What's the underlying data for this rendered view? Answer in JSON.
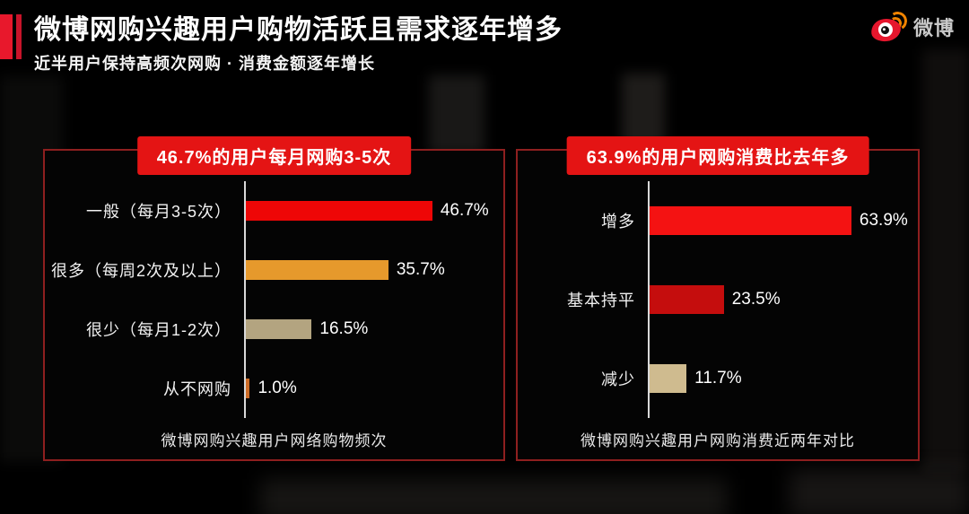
{
  "header": {
    "title": "微博网购兴趣用户购物活跃且需求逐年增多",
    "subtitle": "近半用户保持高频次网购 · 消费金额逐年增长",
    "logo_text": "微博",
    "accent_color": "#e8182c",
    "accent_stripe_color": "#c8142a"
  },
  "chart_data": [
    {
      "type": "bar",
      "orientation": "horizontal",
      "title": "46.7%的用户每月网购3-5次",
      "caption": "微博网购兴趣用户网络购物频次",
      "categories": [
        "一般（每月3-5次）",
        "很多（每周2次及以上）",
        "很少（每月1-2次）",
        "从不网购"
      ],
      "values": [
        46.7,
        35.7,
        16.5,
        1.0
      ],
      "data_labels": [
        "46.7%",
        "35.7%",
        "16.5%",
        "1.0%"
      ],
      "bar_colors": [
        "#ee0606",
        "#e6992c",
        "#b3a480",
        "#cc6b26"
      ],
      "banner_color": "#e41414",
      "xlim": [
        0,
        65
      ],
      "grid": false,
      "value_label_position": "right-of-bar"
    },
    {
      "type": "bar",
      "orientation": "horizontal",
      "title": "63.9%的用户网购消费比去年多",
      "caption": "微博网购兴趣用户网购消费近两年对比",
      "categories": [
        "增多",
        "基本持平",
        "减少"
      ],
      "values": [
        63.9,
        23.5,
        11.7
      ],
      "data_labels": [
        "63.9%",
        "23.5%",
        "11.7%"
      ],
      "bar_colors": [
        "#f41212",
        "#c50d0d",
        "#cfbb8f"
      ],
      "banner_color": "#e41414",
      "xlim": [
        0,
        85
      ],
      "grid": false,
      "value_label_position": "right-of-bar"
    }
  ]
}
